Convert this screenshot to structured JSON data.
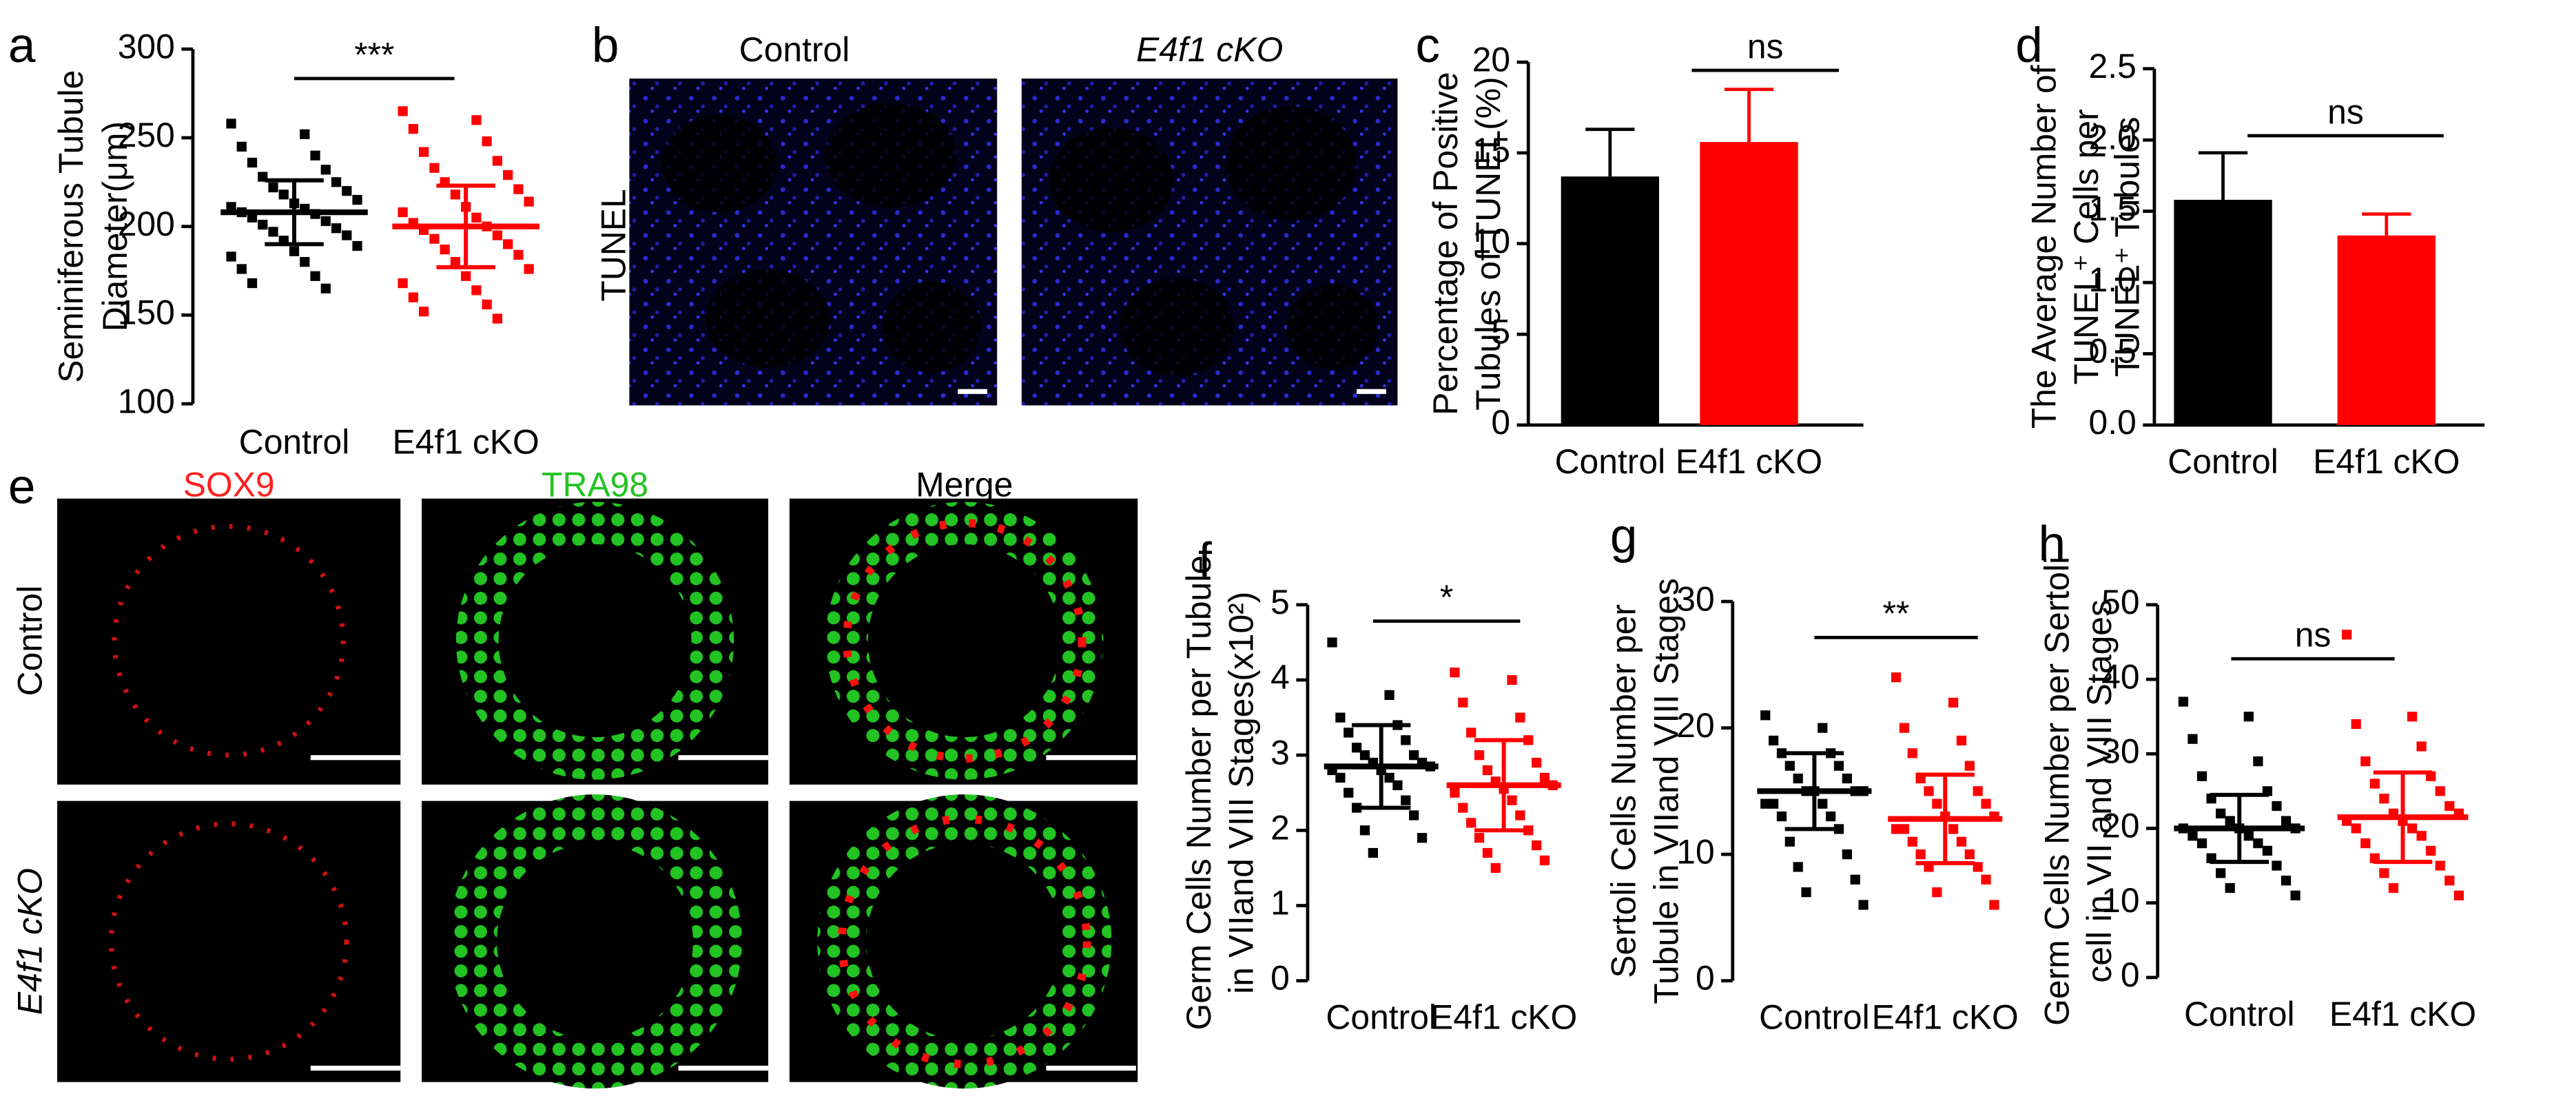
{
  "chart_data": [
    {
      "type": "dot",
      "panel": "a",
      "y_label": [
        "Seminiferous Tubule",
        "Diameter(μm)"
      ],
      "categories": [
        "Control",
        "E4f1 cKO"
      ],
      "groups": [
        {
          "color": "#000000",
          "mean": 208,
          "sd": 18,
          "values": [
            258,
            252,
            245,
            240,
            236,
            232,
            228,
            225,
            222,
            220,
            218,
            215,
            213,
            211,
            210,
            208,
            207,
            205,
            203,
            201,
            199,
            197,
            195,
            192,
            189,
            186,
            183,
            180,
            176,
            172,
            168,
            165
          ]
        },
        {
          "color": "#ff0000",
          "mean": 200,
          "sd": 23,
          "values": [
            265,
            260,
            255,
            248,
            242,
            237,
            233,
            229,
            225,
            221,
            218,
            214,
            211,
            208,
            205,
            202,
            200,
            198,
            195,
            193,
            190,
            187,
            184,
            180,
            176,
            172,
            168,
            164,
            160,
            156,
            152,
            148
          ]
        }
      ],
      "ylim": [
        100,
        300
      ],
      "yticks": [
        100,
        150,
        200,
        250,
        300
      ],
      "annotation": "***"
    },
    {
      "type": "bar",
      "panel": "c",
      "y_label": [
        "Percentage of Positive",
        "Tubules of TUNEL(%)"
      ],
      "categories": [
        "Control",
        "E4f1 cKO"
      ],
      "values": [
        13.7,
        15.6
      ],
      "errors": [
        2.6,
        2.9
      ],
      "colors": [
        "#000000",
        "#ff0000"
      ],
      "ylim": [
        0,
        20
      ],
      "yticks": [
        0,
        5,
        10,
        15,
        20
      ],
      "annotation": "ns"
    },
    {
      "type": "bar",
      "panel": "d",
      "y_label": [
        "The Average Number of",
        "TUNEL⁺ Cells per",
        "TUNEL⁺ Tubules"
      ],
      "categories": [
        "Control",
        "E4f1 cKO"
      ],
      "values": [
        1.58,
        1.33
      ],
      "errors": [
        0.33,
        0.15
      ],
      "colors": [
        "#000000",
        "#ff0000"
      ],
      "ylim": [
        0,
        2.5
      ],
      "yticks": [
        {
          "value": 0,
          "label": "0.0"
        },
        0.5,
        {
          "value": 1,
          "label": "1.0"
        },
        1.5,
        {
          "value": 2,
          "label": "2.0"
        },
        2.5
      ],
      "annotation": "ns"
    },
    {
      "type": "dot",
      "panel": "f",
      "y_label": [
        "Germ Cells Number per Tubule",
        "in VIIand VIII Stages(x10²)"
      ],
      "categories": [
        "Control",
        "E4f1 cKO"
      ],
      "groups": [
        {
          "color": "#000000",
          "mean": 2.85,
          "sd": 0.55,
          "values": [
            4.5,
            3.8,
            3.5,
            3.4,
            3.3,
            3.2,
            3.1,
            3.0,
            3.0,
            2.9,
            2.9,
            2.85,
            2.8,
            2.8,
            2.7,
            2.7,
            2.6,
            2.5,
            2.4,
            2.3,
            2.2,
            2.0,
            1.9,
            1.7
          ]
        },
        {
          "color": "#ff0000",
          "mean": 2.6,
          "sd": 0.6,
          "values": [
            4.1,
            4.0,
            3.7,
            3.5,
            3.3,
            3.2,
            3.0,
            2.9,
            2.8,
            2.7,
            2.65,
            2.6,
            2.55,
            2.5,
            2.4,
            2.3,
            2.2,
            2.1,
            2.0,
            1.9,
            1.8,
            1.7,
            1.6,
            1.5
          ]
        }
      ],
      "ylim": [
        0,
        5
      ],
      "yticks": [
        0,
        1,
        2,
        3,
        4,
        5
      ],
      "annotation": "*"
    },
    {
      "type": "dot",
      "panel": "g",
      "y_label": [
        "Sertoli Cells Number per",
        "Tubule in VIIand VIII Stages"
      ],
      "categories": [
        "Control",
        "E4f1 cKO"
      ],
      "groups": [
        {
          "color": "#000000",
          "mean": 15,
          "sd": 3,
          "values": [
            21,
            20,
            19,
            18,
            18,
            17,
            17,
            16,
            16,
            15,
            15,
            15,
            15,
            14,
            14,
            14,
            13,
            13,
            12,
            11,
            10,
            9,
            8,
            7,
            6
          ]
        },
        {
          "color": "#ff0000",
          "mean": 12.8,
          "sd": 3.5,
          "values": [
            24,
            22,
            20,
            19,
            18,
            17,
            16,
            15,
            15,
            14,
            14,
            13,
            13,
            12,
            12,
            12,
            11,
            11,
            10,
            10,
            9,
            9,
            8,
            7,
            6
          ]
        }
      ],
      "ylim": [
        0,
        30
      ],
      "yticks": [
        0,
        10,
        20,
        30
      ],
      "annotation": "**"
    },
    {
      "type": "dot",
      "panel": "h",
      "y_label": [
        "Germ Cells Number per Sertoli",
        "cell in VII and VIII Stages"
      ],
      "categories": [
        "Control",
        "E4f1 cKO"
      ],
      "groups": [
        {
          "color": "#000000",
          "mean": 20,
          "sd": 4.5,
          "values": [
            37,
            35,
            32,
            29,
            27,
            25,
            24,
            23,
            22,
            21,
            21,
            20,
            20,
            20,
            19,
            19,
            18,
            18,
            17,
            16,
            15,
            14,
            13,
            12,
            11
          ]
        },
        {
          "color": "#ff0000",
          "mean": 21.5,
          "sd": 6,
          "values": [
            46,
            35,
            34,
            31,
            29,
            27,
            26,
            25,
            24,
            23,
            22,
            22,
            21,
            21,
            20,
            20,
            19,
            18,
            17,
            16,
            15,
            14,
            13,
            12,
            11
          ]
        }
      ],
      "ylim": [
        0,
        50
      ],
      "yticks": [
        0,
        10,
        20,
        30,
        40,
        50
      ],
      "annotation": "ns"
    }
  ],
  "images": {
    "b": {
      "panel": "b",
      "columns": [
        "Control",
        "E4f1 cKO"
      ],
      "row": "TUNEL"
    },
    "e": {
      "panel": "e",
      "columns": [
        "SOX9",
        "TRA98",
        "Merge"
      ],
      "rows": [
        "Control",
        "E4f1 cKO"
      ]
    }
  }
}
